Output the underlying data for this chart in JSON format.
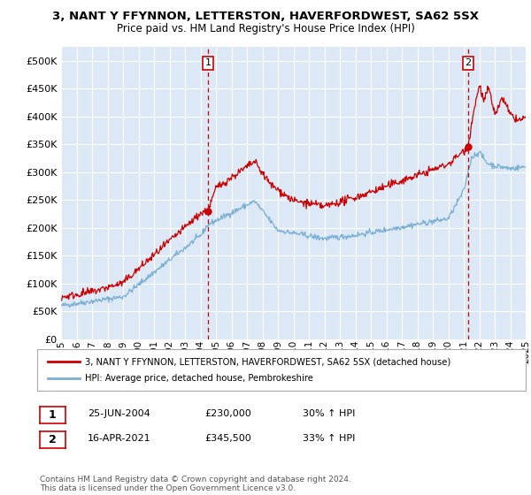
{
  "title_line1": "3, NANT Y FFYNNON, LETTERSTON, HAVERFORDWEST, SA62 5SX",
  "title_line2": "Price paid vs. HM Land Registry's House Price Index (HPI)",
  "legend_label1": "3, NANT Y FFYNNON, LETTERSTON, HAVERFORDWEST, SA62 5SX (detached house)",
  "legend_label2": "HPI: Average price, detached house, Pembrokeshire",
  "footer": "Contains HM Land Registry data © Crown copyright and database right 2024.\nThis data is licensed under the Open Government Licence v3.0.",
  "annotation1": {
    "label": "1",
    "date": "25-JUN-2004",
    "price": "£230,000",
    "change": "30% ↑ HPI"
  },
  "annotation2": {
    "label": "2",
    "date": "16-APR-2021",
    "price": "£345,500",
    "change": "33% ↑ HPI"
  },
  "ylim": [
    0,
    525000
  ],
  "yticks": [
    0,
    50000,
    100000,
    150000,
    200000,
    250000,
    300000,
    350000,
    400000,
    450000,
    500000
  ],
  "plot_bg_color": "#dce8f5",
  "line1_color": "#cc0000",
  "line2_color": "#7ab0d4",
  "grid_color": "#ffffff",
  "marker1_x": 2004.49,
  "marker2_x": 2021.29,
  "marker1_y": 230000,
  "marker2_y": 345500,
  "xmin": 1995,
  "xmax": 2025
}
